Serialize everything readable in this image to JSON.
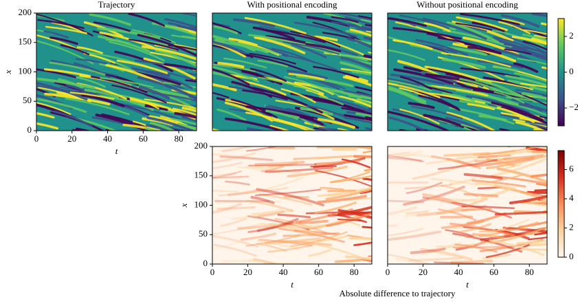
{
  "chart_data": [
    {
      "type": "heatmap",
      "title": "Trajectory",
      "xlabel": "t",
      "ylabel": "x",
      "xlim": [
        0,
        90
      ],
      "xticks": [
        0,
        20,
        40,
        60,
        80
      ],
      "ylim": [
        0,
        200
      ],
      "yticks": [
        0,
        50,
        100,
        150,
        200
      ],
      "colormap": "viridis"
    },
    {
      "type": "heatmap",
      "title": "With positional encoding",
      "xlim": [
        0,
        90
      ],
      "ylim": [
        0,
        200
      ],
      "colormap": "viridis"
    },
    {
      "type": "heatmap",
      "title": "Without positional encoding",
      "xlim": [
        0,
        90
      ],
      "ylim": [
        0,
        200
      ],
      "colormap": "viridis"
    },
    {
      "type": "colorbar",
      "colormap": "viridis",
      "ylim": [
        -3,
        3
      ],
      "yticks": [
        2,
        0,
        {
          "value": -2,
          "label": "−2"
        }
      ]
    },
    {
      "type": "heatmap",
      "xlabel": "t",
      "ylabel": "x",
      "xlim": [
        0,
        90
      ],
      "xticks": [
        0,
        20,
        40,
        60,
        80
      ],
      "ylim": [
        0,
        200
      ],
      "yticks": [
        0,
        50,
        100,
        150,
        200
      ],
      "colormap": "reds"
    },
    {
      "type": "heatmap",
      "xlabel": "t",
      "xlim": [
        0,
        90
      ],
      "xticks": [
        0,
        20,
        40,
        60,
        80
      ],
      "ylim": [
        0,
        200
      ],
      "colormap": "reds"
    },
    {
      "type": "colorbar",
      "colormap": "reds",
      "ylim": [
        0,
        7.3
      ],
      "yticks": [
        0,
        2,
        4,
        6
      ]
    }
  ],
  "figure_label": "Absolute difference to trajectory"
}
